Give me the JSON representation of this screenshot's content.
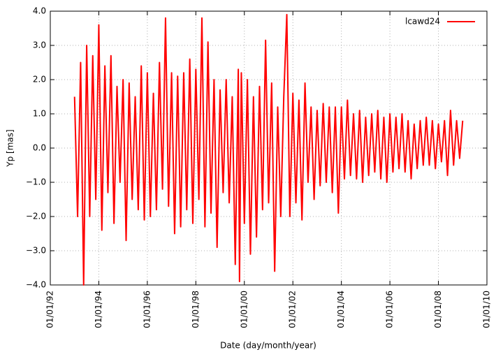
{
  "chart_data": {
    "type": "line",
    "xlabel": "Date (day/month/year)",
    "ylabel": "Yp [mas]",
    "xlim": [
      1992,
      2010
    ],
    "xticks": [
      {
        "value": 1992,
        "label": "01/01/92"
      },
      {
        "value": 1994,
        "label": "01/01/94"
      },
      {
        "value": 1996,
        "label": "01/01/96"
      },
      {
        "value": 1998,
        "label": "01/01/98"
      },
      {
        "value": 2000,
        "label": "01/01/00"
      },
      {
        "value": 2002,
        "label": "01/01/02"
      },
      {
        "value": 2004,
        "label": "01/01/04"
      },
      {
        "value": 2006,
        "label": "01/01/06"
      },
      {
        "value": 2008,
        "label": "01/01/08"
      },
      {
        "value": 2010,
        "label": "01/01/10"
      }
    ],
    "ylim": [
      -4,
      4
    ],
    "yticks": [
      {
        "value": -4,
        "label": "−4.0"
      },
      {
        "value": -3,
        "label": "−3.0"
      },
      {
        "value": -2,
        "label": "−2.0"
      },
      {
        "value": -1,
        "label": "−1.0"
      },
      {
        "value": 0,
        "label": "0.0"
      },
      {
        "value": 1,
        "label": "1.0"
      },
      {
        "value": 2,
        "label": "2.0"
      },
      {
        "value": 3,
        "label": "3.0"
      },
      {
        "value": 4,
        "label": "4.0"
      }
    ],
    "grid": true,
    "legend": "upper right",
    "x": [
      1993.0,
      1993.125,
      1993.25,
      1993.375,
      1993.5,
      1993.625,
      1993.75,
      1993.875,
      1994.0,
      1994.125,
      1994.25,
      1994.375,
      1994.5,
      1994.625,
      1994.75,
      1994.875,
      1995.0,
      1995.125,
      1995.25,
      1995.375,
      1995.5,
      1995.625,
      1995.75,
      1995.875,
      1996.0,
      1996.125,
      1996.25,
      1996.375,
      1996.5,
      1996.625,
      1996.75,
      1996.875,
      1997.0,
      1997.125,
      1997.25,
      1997.375,
      1997.5,
      1997.625,
      1997.75,
      1997.875,
      1998.0,
      1998.125,
      1998.25,
      1998.375,
      1998.5,
      1998.625,
      1998.75,
      1998.875,
      1999.0,
      1999.125,
      1999.25,
      1999.375,
      1999.5,
      1999.625,
      1999.75,
      1999.8,
      1999.875,
      2000.0,
      2000.125,
      2000.25,
      2000.375,
      2000.5,
      2000.625,
      2000.75,
      2000.875,
      2001.0,
      2001.125,
      2001.25,
      2001.375,
      2001.5,
      2001.625,
      2001.75,
      2001.875,
      2002.0,
      2002.125,
      2002.25,
      2002.375,
      2002.5,
      2002.625,
      2002.75,
      2002.875,
      2003.0,
      2003.125,
      2003.25,
      2003.375,
      2003.5,
      2003.625,
      2003.75,
      2003.875,
      2004.0,
      2004.125,
      2004.25,
      2004.375,
      2004.5,
      2004.625,
      2004.75,
      2004.875,
      2005.0,
      2005.125,
      2005.25,
      2005.375,
      2005.5,
      2005.625,
      2005.75,
      2005.875,
      2006.0,
      2006.125,
      2006.25,
      2006.375,
      2006.5,
      2006.625,
      2006.75,
      2006.875,
      2007.0,
      2007.125,
      2007.25,
      2007.375,
      2007.5,
      2007.625,
      2007.75,
      2007.875,
      2008.0,
      2008.125,
      2008.25,
      2008.375,
      2008.5,
      2008.625,
      2008.75,
      2008.875,
      2009.0
    ],
    "series": [
      {
        "name": "lcawd24",
        "color": "#ff0000",
        "values": [
          1.5,
          -2.0,
          2.5,
          -4.0,
          3.0,
          -2.0,
          2.7,
          -1.5,
          3.6,
          -2.4,
          2.4,
          -1.3,
          2.7,
          -2.2,
          1.8,
          -1.0,
          2.0,
          -2.7,
          1.9,
          -1.5,
          1.5,
          -1.8,
          2.4,
          -2.1,
          2.2,
          -2.0,
          1.6,
          -1.8,
          2.5,
          -1.2,
          3.8,
          -1.7,
          2.2,
          -2.5,
          2.1,
          -2.3,
          2.2,
          -1.8,
          2.6,
          -2.2,
          2.3,
          -1.5,
          3.8,
          -2.3,
          3.1,
          -1.9,
          2.0,
          -2.9,
          1.7,
          -1.3,
          2.0,
          -1.6,
          1.5,
          -3.4,
          2.3,
          -3.9,
          2.2,
          -2.2,
          2.0,
          -3.1,
          1.5,
          -2.6,
          1.8,
          -1.8,
          3.15,
          -1.6,
          1.9,
          -3.6,
          1.2,
          -2.0,
          1.5,
          3.9,
          -2.0,
          1.6,
          -1.6,
          1.4,
          -2.1,
          1.9,
          -1.0,
          1.2,
          -1.5,
          1.1,
          -1.1,
          1.3,
          -1.0,
          1.2,
          -1.3,
          1.2,
          -1.9,
          1.2,
          -0.9,
          1.4,
          -0.8,
          1.0,
          -0.9,
          1.1,
          -1.0,
          0.9,
          -0.8,
          1.0,
          -0.7,
          1.1,
          -0.9,
          0.9,
          -1.0,
          1.0,
          -0.7,
          0.9,
          -0.6,
          1.0,
          -0.7,
          0.8,
          -0.9,
          0.7,
          -0.6,
          0.8,
          -0.5,
          0.9,
          -0.5,
          0.8,
          -0.6,
          0.7,
          -0.4,
          0.8,
          -0.8,
          1.1,
          -0.5,
          0.8,
          -0.3,
          0.8
        ]
      }
    ]
  }
}
